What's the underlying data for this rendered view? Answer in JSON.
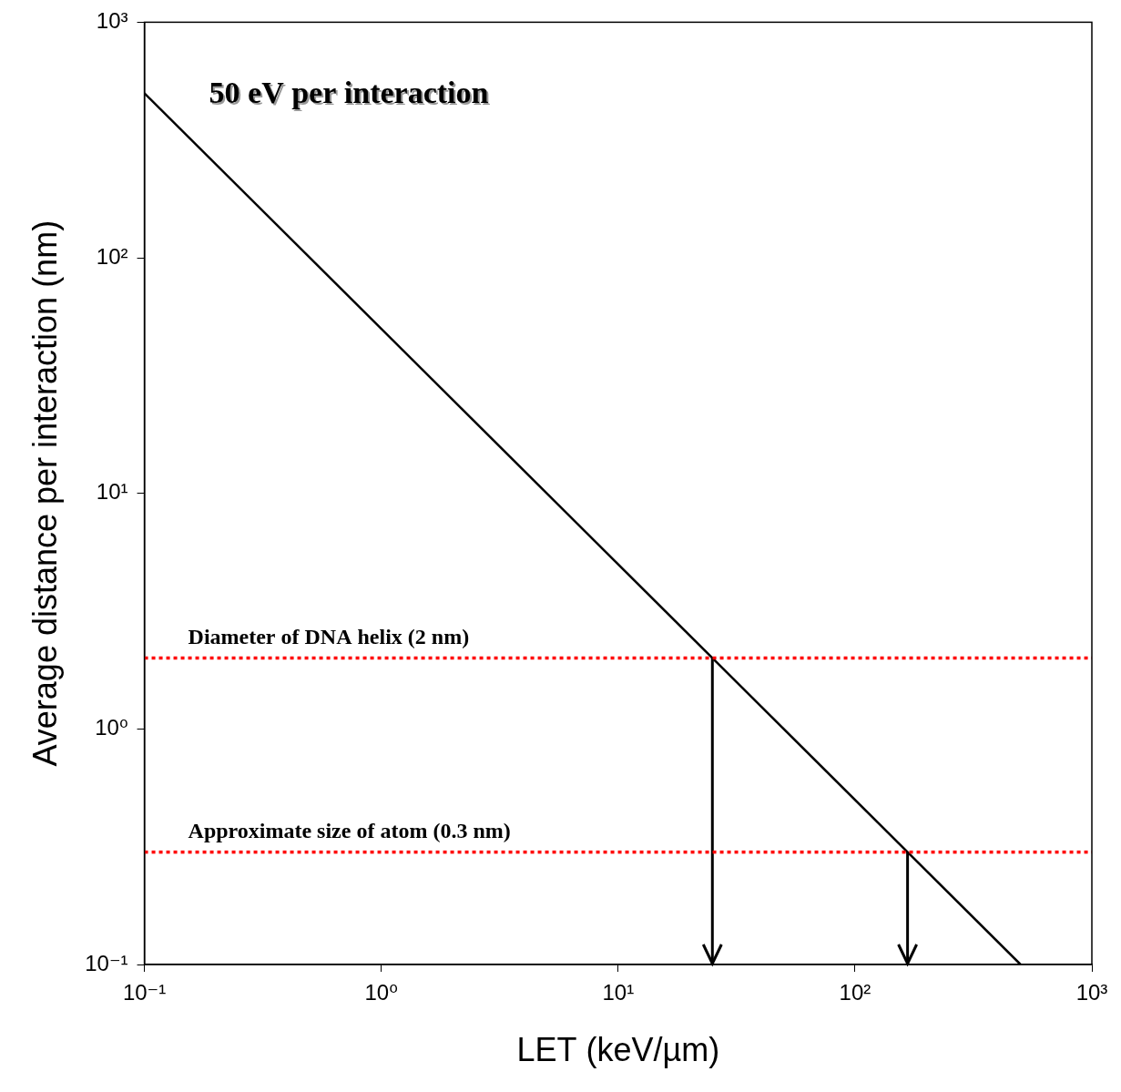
{
  "chart_data": {
    "type": "line",
    "title": "50 eV per interaction",
    "x_label": "LET (keV/µm)",
    "y_label": "Average distance per interaction (nm)",
    "log": true,
    "grid": false,
    "tick_labels": true,
    "x": [
      0.1,
      500
    ],
    "series": [
      {
        "values": [
          500,
          0.1
        ],
        "color": "#000000",
        "line_style": "solid",
        "marker": "none"
      }
    ],
    "reference_lines": [
      {
        "y": 2,
        "label": "Diameter of DNA helix (2 nm)",
        "color": "#ff0000",
        "line_style": "dotted"
      },
      {
        "y": 0.3,
        "label": "Approximate size of atom (0.3 nm)",
        "color": "#ff0000",
        "line_style": "dotted"
      }
    ],
    "arrows": [
      {
        "x": 25,
        "from_y": 2,
        "color": "#000000"
      },
      {
        "x": 166.7,
        "from_y": 0.3,
        "color": "#000000"
      }
    ],
    "xlim": [
      0.1,
      1000
    ],
    "ylim": [
      0.1,
      1000
    ],
    "xticks": [
      {
        "value": 0.1,
        "label": "10⁻¹"
      },
      {
        "value": 1,
        "label": "10⁰"
      },
      {
        "value": 10,
        "label": "10¹"
      },
      {
        "value": 100,
        "label": "10²"
      },
      {
        "value": 1000,
        "label": "10³"
      }
    ],
    "yticks": [
      {
        "value": 0.1,
        "label": "10⁻¹"
      },
      {
        "value": 1,
        "label": "10⁰"
      },
      {
        "value": 10,
        "label": "10¹"
      },
      {
        "value": 100,
        "label": "10²"
      },
      {
        "value": 1000,
        "label": "10³"
      }
    ]
  }
}
